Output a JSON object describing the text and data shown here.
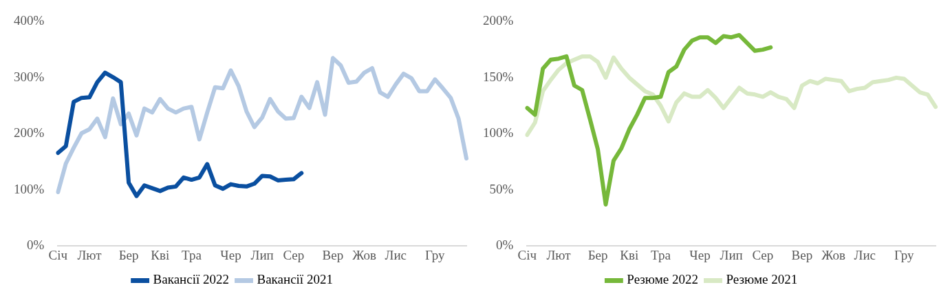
{
  "chart_data": [
    {
      "type": "line",
      "categories": [
        "Січ",
        null,
        null,
        null,
        "Лют",
        null,
        null,
        null,
        null,
        "Бер",
        null,
        null,
        null,
        "Кві",
        null,
        null,
        null,
        "Тра",
        null,
        null,
        null,
        null,
        "Чер",
        null,
        null,
        null,
        "Лип",
        null,
        null,
        null,
        "Сер",
        null,
        null,
        null,
        null,
        "Вер",
        null,
        null,
        null,
        "Жов",
        null,
        null,
        null,
        "Лис",
        null,
        null,
        null,
        null,
        "Гру",
        null,
        null,
        null,
        null
      ],
      "ylim": [
        0,
        400
      ],
      "yticks": [
        {
          "value": 0,
          "label": "0%"
        },
        {
          "value": 100,
          "label": "100%"
        },
        {
          "value": 200,
          "label": "200%"
        },
        {
          "value": 300,
          "label": "300%"
        },
        {
          "value": 400,
          "label": "400%"
        }
      ],
      "grid": false,
      "legend": "bottom",
      "marker": "none",
      "line_style": "solid",
      "series": [
        {
          "name": "Вакансії 2022",
          "color": "#0a4fa0",
          "values": [
            166,
            178,
            257,
            264,
            265,
            292,
            309,
            301,
            292,
            113,
            89,
            108,
            103,
            98,
            104,
            106,
            122,
            118,
            122,
            146,
            108,
            102,
            110,
            107,
            106,
            111,
            125,
            124,
            117,
            118,
            119,
            130,
            null,
            null,
            null,
            null,
            null,
            null,
            null,
            null,
            null,
            null,
            null,
            null,
            null,
            null,
            null,
            null,
            null,
            null,
            null,
            null,
            null
          ]
        },
        {
          "name": "Вакансії 2021",
          "color": "#b4c9e3",
          "values": [
            96,
            147,
            175,
            201,
            208,
            227,
            194,
            263,
            217,
            236,
            197,
            245,
            238,
            262,
            245,
            238,
            245,
            248,
            190,
            238,
            283,
            281,
            313,
            285,
            240,
            212,
            229,
            262,
            240,
            227,
            228,
            266,
            246,
            292,
            234,
            335,
            322,
            291,
            293,
            309,
            317,
            274,
            266,
            288,
            307,
            299,
            276,
            276,
            297,
            281,
            264,
            227,
            156
          ]
        }
      ]
    },
    {
      "type": "line",
      "categories": [
        "Січ",
        null,
        null,
        null,
        "Лют",
        null,
        null,
        null,
        null,
        "Бер",
        null,
        null,
        null,
        "Кві",
        null,
        null,
        null,
        "Тра",
        null,
        null,
        null,
        null,
        "Чер",
        null,
        null,
        null,
        "Лип",
        null,
        null,
        null,
        "Сер",
        null,
        null,
        null,
        null,
        "Вер",
        null,
        null,
        null,
        "Жов",
        null,
        null,
        null,
        "Лис",
        null,
        null,
        null,
        null,
        "Гру",
        null,
        null,
        null,
        null
      ],
      "ylim": [
        0,
        200
      ],
      "yticks": [
        {
          "value": 0,
          "label": "0%"
        },
        {
          "value": 50,
          "label": "50%"
        },
        {
          "value": 100,
          "label": "100%"
        },
        {
          "value": 150,
          "label": "150%"
        },
        {
          "value": 200,
          "label": "200%"
        }
      ],
      "grid": false,
      "legend": "bottom",
      "marker": "none",
      "line_style": "solid",
      "series": [
        {
          "name": "Резюме 2022",
          "color": "#76b83a",
          "values": [
            123,
            117,
            158,
            166,
            167,
            169,
            143,
            139,
            113,
            86,
            37,
            76,
            87,
            104,
            117,
            132,
            132,
            133,
            155,
            160,
            175,
            183,
            186,
            186,
            181,
            187,
            186,
            188,
            181,
            174,
            175,
            177,
            null,
            null,
            null,
            null,
            null,
            null,
            null,
            null,
            null,
            null,
            null,
            null,
            null,
            null,
            null,
            null,
            null,
            null,
            null,
            null,
            null
          ]
        },
        {
          "name": "Резюме 2021",
          "color": "#d8e9c4",
          "values": [
            99,
            110,
            138,
            148,
            157,
            163,
            166,
            169,
            169,
            164,
            150,
            168,
            158,
            150,
            144,
            138,
            135,
            125,
            111,
            128,
            136,
            133,
            133,
            139,
            132,
            123,
            132,
            141,
            136,
            135,
            133,
            137,
            133,
            131,
            123,
            143,
            147,
            145,
            149,
            148,
            147,
            138,
            140,
            141,
            146,
            147,
            148,
            150,
            149,
            143,
            137,
            135,
            124
          ]
        }
      ]
    }
  ]
}
